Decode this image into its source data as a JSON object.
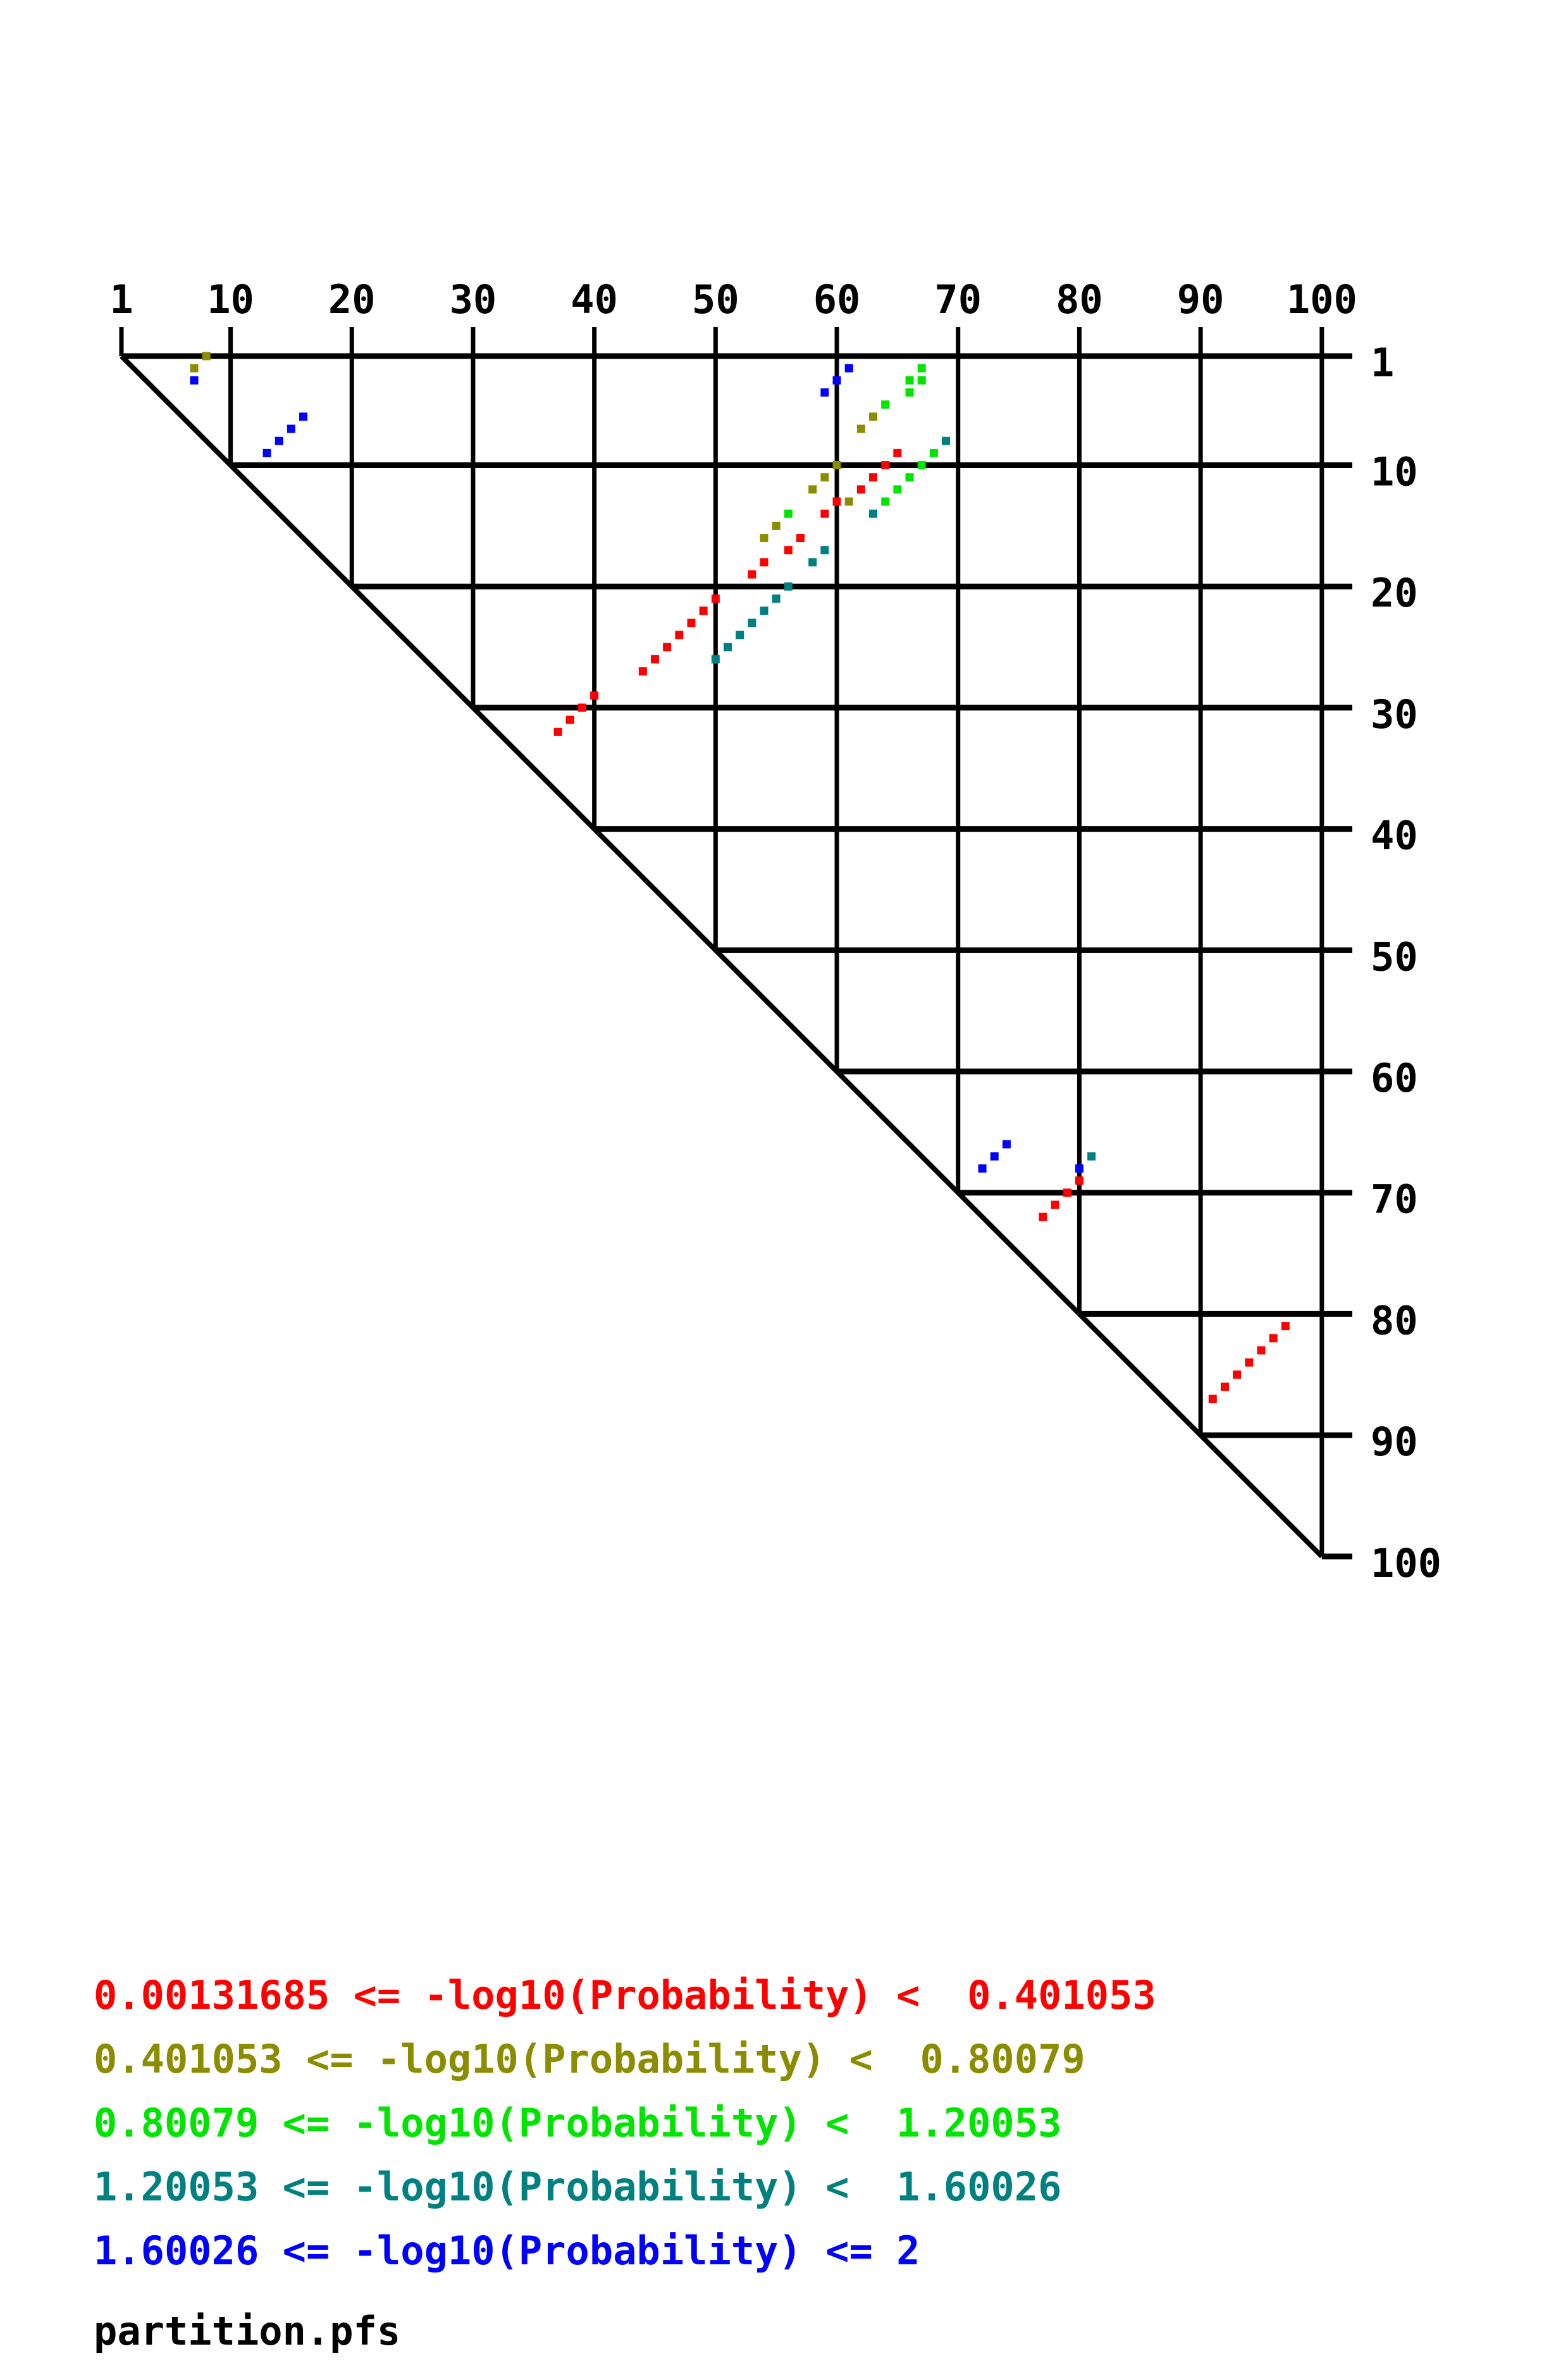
{
  "file_label": "partition.pfs",
  "legend": [
    {
      "text": "0.00131685 <= -log10(Probability) <  0.401053",
      "color": "#FF0000",
      "class": "red"
    },
    {
      "text": "0.401053 <= -log10(Probability) <  0.80079",
      "color": "#8C8C00",
      "class": "olive"
    },
    {
      "text": "0.80079 <= -log10(Probability) <  1.20053",
      "color": "#00E400",
      "class": "green"
    },
    {
      "text": "1.20053 <= -log10(Probability) <  1.60026",
      "color": "#008080",
      "class": "teal"
    },
    {
      "text": "1.60026 <= -log10(Probability) <= 2",
      "color": "#0000FF",
      "class": "blue"
    }
  ],
  "chart_data": {
    "type": "scatter",
    "subtype": "triangular-dot-plot",
    "title": "",
    "x_axis": {
      "side": "top",
      "range": [
        1,
        100
      ],
      "ticks": [
        1,
        10,
        20,
        30,
        40,
        50,
        60,
        70,
        80,
        90,
        100
      ]
    },
    "y_axis": {
      "side": "right",
      "range": [
        1,
        100
      ],
      "ticks": [
        1,
        10,
        20,
        30,
        40,
        50,
        60,
        70,
        80,
        90,
        100
      ]
    },
    "grid": true,
    "diagonal": true,
    "colors": {
      "red": "#FF0000",
      "olive": "#8C8C00",
      "green": "#00E400",
      "teal": "#008080",
      "blue": "#0000FF"
    },
    "points": [
      [
        8,
        1,
        "olive"
      ],
      [
        7,
        2,
        "olive"
      ],
      [
        7,
        3,
        "blue"
      ],
      [
        16,
        6,
        "blue"
      ],
      [
        15,
        7,
        "blue"
      ],
      [
        14,
        8,
        "blue"
      ],
      [
        13,
        9,
        "blue"
      ],
      [
        61,
        2,
        "blue"
      ],
      [
        67,
        2,
        "green"
      ],
      [
        60,
        3,
        "blue"
      ],
      [
        66,
        3,
        "green"
      ],
      [
        67,
        3,
        "green"
      ],
      [
        59,
        4,
        "blue"
      ],
      [
        66,
        4,
        "green"
      ],
      [
        64,
        5,
        "green"
      ],
      [
        63,
        6,
        "olive"
      ],
      [
        62,
        7,
        "olive"
      ],
      [
        69,
        8,
        "teal"
      ],
      [
        65,
        9,
        "red"
      ],
      [
        68,
        9,
        "green"
      ],
      [
        60,
        10,
        "olive"
      ],
      [
        64,
        10,
        "red"
      ],
      [
        67,
        10,
        "green"
      ],
      [
        59,
        11,
        "olive"
      ],
      [
        63,
        11,
        "red"
      ],
      [
        66,
        11,
        "green"
      ],
      [
        58,
        12,
        "olive"
      ],
      [
        62,
        12,
        "red"
      ],
      [
        65,
        12,
        "green"
      ],
      [
        60,
        13,
        "red"
      ],
      [
        61,
        13,
        "olive"
      ],
      [
        64,
        13,
        "green"
      ],
      [
        56,
        14,
        "green"
      ],
      [
        59,
        14,
        "red"
      ],
      [
        63,
        14,
        "teal"
      ],
      [
        55,
        15,
        "olive"
      ],
      [
        54,
        16,
        "olive"
      ],
      [
        57,
        16,
        "red"
      ],
      [
        56,
        17,
        "red"
      ],
      [
        59,
        17,
        "teal"
      ],
      [
        54,
        18,
        "red"
      ],
      [
        58,
        18,
        "teal"
      ],
      [
        53,
        19,
        "red"
      ],
      [
        56,
        20,
        "teal"
      ],
      [
        50,
        21,
        "red"
      ],
      [
        55,
        21,
        "teal"
      ],
      [
        49,
        22,
        "red"
      ],
      [
        54,
        22,
        "teal"
      ],
      [
        48,
        23,
        "red"
      ],
      [
        53,
        23,
        "teal"
      ],
      [
        47,
        24,
        "red"
      ],
      [
        52,
        24,
        "teal"
      ],
      [
        46,
        25,
        "red"
      ],
      [
        51,
        25,
        "teal"
      ],
      [
        45,
        26,
        "red"
      ],
      [
        50,
        26,
        "teal"
      ],
      [
        44,
        27,
        "red"
      ],
      [
        40,
        29,
        "red"
      ],
      [
        39,
        30,
        "red"
      ],
      [
        38,
        31,
        "red"
      ],
      [
        37,
        32,
        "red"
      ],
      [
        74,
        66,
        "blue"
      ],
      [
        73,
        67,
        "blue"
      ],
      [
        81,
        67,
        "teal"
      ],
      [
        72,
        68,
        "blue"
      ],
      [
        80,
        68,
        "blue"
      ],
      [
        80,
        69,
        "red"
      ],
      [
        79,
        70,
        "red"
      ],
      [
        78,
        71,
        "red"
      ],
      [
        77,
        72,
        "red"
      ],
      [
        97,
        81,
        "red"
      ],
      [
        96,
        82,
        "red"
      ],
      [
        95,
        83,
        "red"
      ],
      [
        94,
        84,
        "red"
      ],
      [
        93,
        85,
        "red"
      ],
      [
        92,
        86,
        "red"
      ],
      [
        91,
        87,
        "red"
      ]
    ]
  }
}
